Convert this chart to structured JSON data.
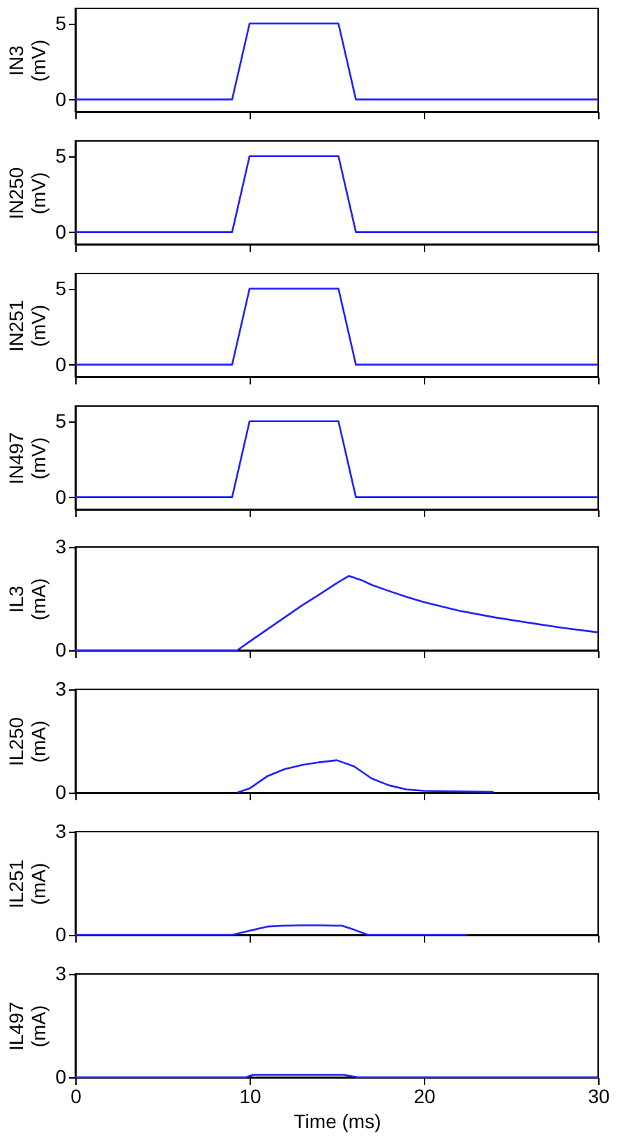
{
  "chart_data": [
    {
      "type": "line",
      "ylabel": "IN3 (mV)",
      "x": [
        0,
        9,
        10,
        15.1,
        16.1,
        30
      ],
      "series": [
        {
          "color": "#2020ff",
          "values": [
            0,
            0,
            5,
            5,
            0,
            0
          ]
        }
      ],
      "xlim": [
        0,
        30
      ],
      "xticks": [
        0,
        10,
        20,
        30
      ],
      "ylim": [
        -0.8,
        6
      ],
      "yticks": [
        0,
        5
      ],
      "tick_labels": "y",
      "grid": false
    },
    {
      "type": "line",
      "ylabel": "IN250 (mV)",
      "x": [
        0,
        9,
        10,
        15.1,
        16.1,
        30
      ],
      "series": [
        {
          "color": "#2020ff",
          "values": [
            0,
            0,
            5,
            5,
            0,
            0
          ]
        }
      ],
      "xlim": [
        0,
        30
      ],
      "xticks": [
        0,
        10,
        20,
        30
      ],
      "ylim": [
        -0.8,
        6
      ],
      "yticks": [
        0,
        5
      ],
      "tick_labels": "y",
      "grid": false
    },
    {
      "type": "line",
      "ylabel": "IN251 (mV)",
      "x": [
        0,
        9,
        10,
        15.1,
        16.1,
        30
      ],
      "series": [
        {
          "color": "#2020ff",
          "values": [
            0,
            0,
            5,
            5,
            0,
            0
          ]
        }
      ],
      "xlim": [
        0,
        30
      ],
      "xticks": [
        0,
        10,
        20,
        30
      ],
      "ylim": [
        -0.8,
        6
      ],
      "yticks": [
        0,
        5
      ],
      "tick_labels": "y",
      "grid": false
    },
    {
      "type": "line",
      "ylabel": "IN497 (mV)",
      "x": [
        0,
        9,
        10,
        15.1,
        16.1,
        30
      ],
      "series": [
        {
          "color": "#2020ff",
          "values": [
            0,
            0,
            5,
            5,
            0,
            0
          ]
        }
      ],
      "xlim": [
        0,
        30
      ],
      "xticks": [
        0,
        10,
        20,
        30
      ],
      "ylim": [
        -0.8,
        6
      ],
      "yticks": [
        0,
        5
      ],
      "tick_labels": "y",
      "grid": false
    },
    {
      "type": "line",
      "ylabel": "IL3 (mA)",
      "x": [
        0,
        9.3,
        10,
        11,
        12,
        13,
        14,
        15,
        15.7,
        16.5,
        17,
        18,
        19,
        20,
        22,
        24,
        26,
        28,
        30
      ],
      "series": [
        {
          "color": "#2020ff",
          "values": [
            0,
            0,
            0.25,
            0.6,
            0.95,
            1.3,
            1.62,
            1.95,
            2.16,
            2.02,
            1.9,
            1.72,
            1.55,
            1.4,
            1.15,
            0.96,
            0.8,
            0.65,
            0.52
          ]
        }
      ],
      "xlim": [
        0,
        30
      ],
      "xticks": [
        0,
        10,
        20,
        30
      ],
      "ylim": [
        0,
        3
      ],
      "yticks": [
        0,
        3
      ],
      "tick_labels": "y",
      "grid": false
    },
    {
      "type": "line",
      "ylabel": "IL250 (mA)",
      "x": [
        9.3,
        10,
        11,
        12,
        13,
        14,
        15,
        16,
        17,
        18,
        19,
        20,
        24
      ],
      "series": [
        {
          "color": "#2020ff",
          "values": [
            0,
            0.12,
            0.47,
            0.68,
            0.8,
            0.88,
            0.94,
            0.76,
            0.41,
            0.21,
            0.09,
            0.05,
            0.02
          ]
        }
      ],
      "xlim": [
        0,
        30
      ],
      "xticks": [
        0,
        10,
        20,
        30
      ],
      "ylim": [
        0,
        3
      ],
      "yticks": [
        0,
        3
      ],
      "tick_labels": "y",
      "grid": false
    },
    {
      "type": "line",
      "ylabel": "IL251 (mA)",
      "x": [
        0,
        9,
        10,
        11,
        12,
        13,
        14,
        15,
        15.3,
        16,
        16.8,
        22.5
      ],
      "series": [
        {
          "color": "#2020ff",
          "values": [
            0,
            0,
            0.12,
            0.24,
            0.27,
            0.28,
            0.28,
            0.27,
            0.27,
            0.15,
            0,
            0
          ]
        }
      ],
      "xlim": [
        0,
        30
      ],
      "xticks": [
        0,
        10,
        20,
        30
      ],
      "ylim": [
        0,
        3
      ],
      "yticks": [
        0,
        3
      ],
      "tick_labels": "y",
      "grid": false
    },
    {
      "type": "line",
      "ylabel": "IL497 (mA)",
      "xlabel": "Time (ms)",
      "x": [
        0,
        9.8,
        10.2,
        15.4,
        16.2,
        30
      ],
      "series": [
        {
          "color": "#2020ff",
          "values": [
            0,
            0,
            0.07,
            0.07,
            0,
            0
          ]
        }
      ],
      "xlim": [
        0,
        30
      ],
      "xticks": [
        0,
        10,
        20,
        30
      ],
      "ylim": [
        0,
        3
      ],
      "yticks": [
        0,
        3
      ],
      "grid": false
    }
  ]
}
